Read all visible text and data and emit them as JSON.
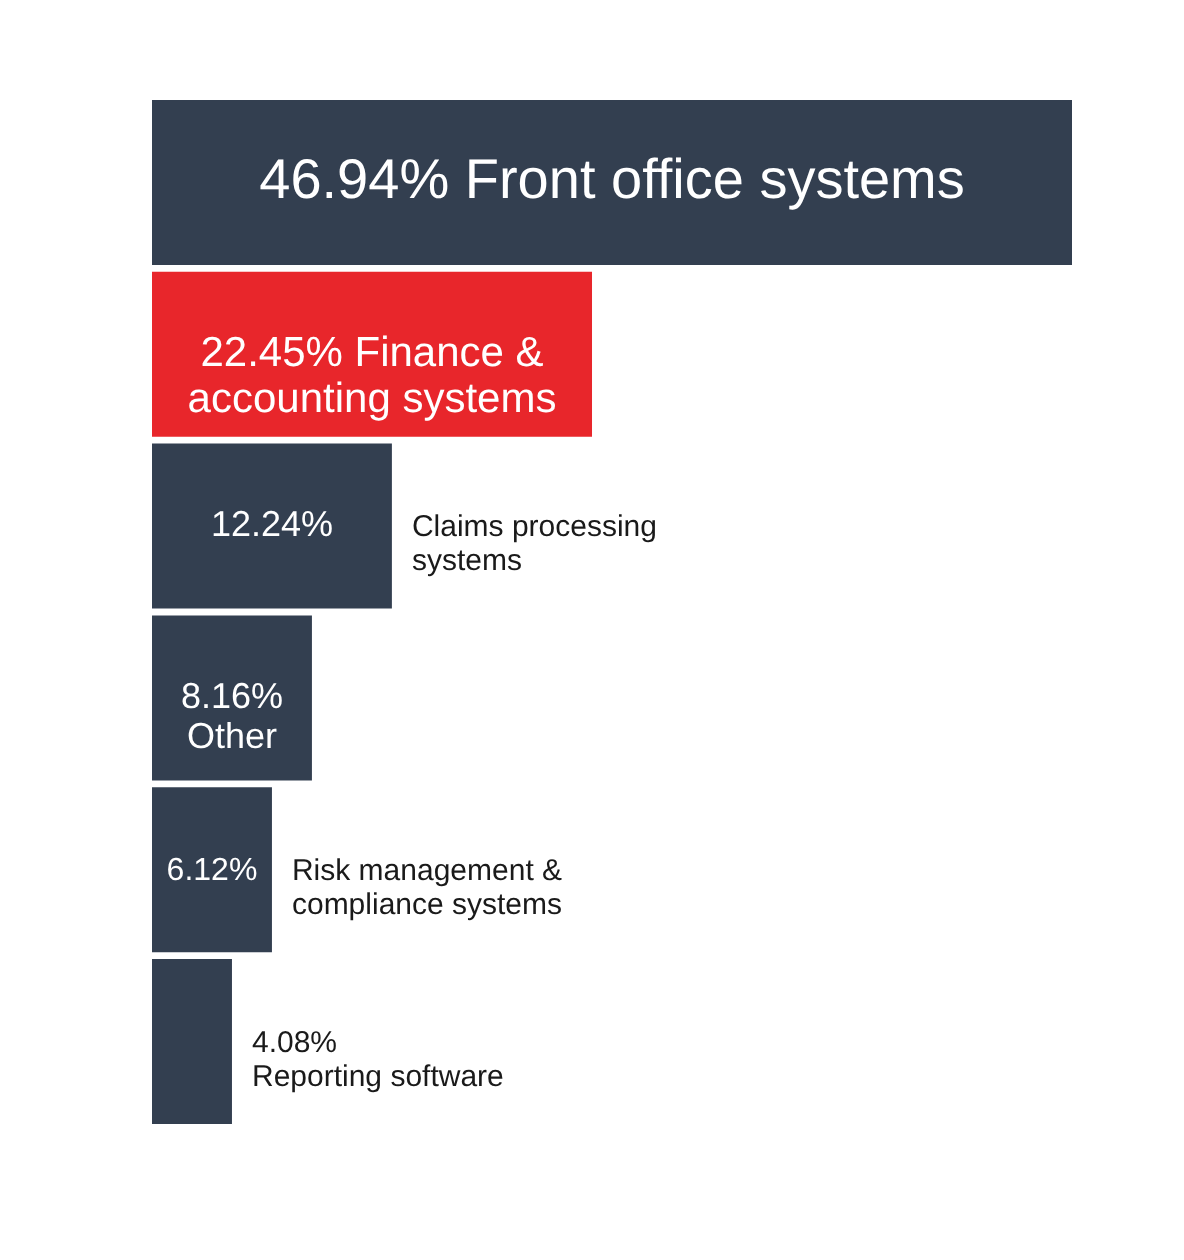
{
  "chart_data": {
    "type": "bar",
    "orientation": "horizontal",
    "tick_labels": false,
    "categories": [
      "Front office systems",
      "Finance & accounting systems",
      "Claims processing systems",
      "Other",
      "Risk management & compliance systems",
      "Reporting software"
    ],
    "values": [
      46.94,
      22.45,
      12.24,
      8.16,
      6.12,
      4.08
    ],
    "value_labels": [
      "46.94%",
      "22.45%",
      "12.24%",
      "8.16%",
      "6.12%",
      "4.08%"
    ],
    "colors": [
      "#333f50",
      "#e8262b",
      "#333f50",
      "#333f50",
      "#333f50",
      "#333f50"
    ]
  }
}
